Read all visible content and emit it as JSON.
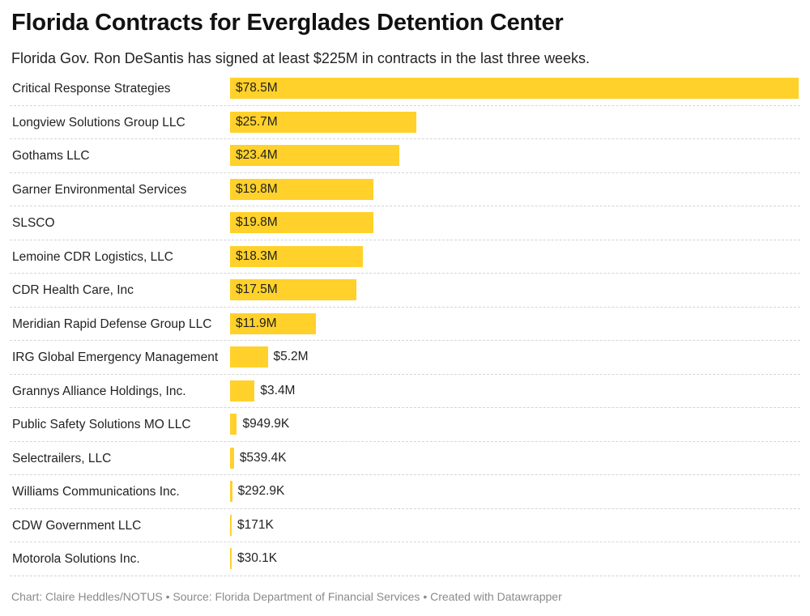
{
  "header": {
    "title": "Florida Contracts for Everglades Detention Center",
    "subtitle": "Florida Gov. Ron DeSantis has signed at least $225M in contracts in the last three weeks."
  },
  "footer": {
    "credit": "Chart: Claire Heddles/NOTUS • Source: Florida Department of Financial Services • Created with Datawrapper"
  },
  "colors": {
    "bar": "#ffd12a"
  },
  "chart_data": {
    "type": "bar",
    "orientation": "horizontal",
    "title": "Florida Contracts for Everglades Detention Center",
    "xlabel": "",
    "ylabel": "",
    "xlim": [
      0,
      78.5
    ],
    "unit": "$M",
    "categories": [
      "Critical Response Strategies",
      "Longview Solutions Group LLC",
      "Gothams LLC",
      "Garner Environmental Services",
      "SLSCO",
      "Lemoine CDR Logistics, LLC",
      "CDR Health Care, Inc",
      "Meridian Rapid Defense Group LLC",
      "IRG Global Emergency Management",
      "Grannys Alliance Holdings, Inc.",
      "Public Safety Solutions MO LLC",
      "Selectrailers, LLC",
      "Williams Communications Inc.",
      "CDW Government LLC",
      "Motorola Solutions Inc."
    ],
    "values": [
      78.5,
      25.7,
      23.4,
      19.8,
      19.8,
      18.3,
      17.5,
      11.9,
      5.2,
      3.4,
      0.9499,
      0.5394,
      0.2929,
      0.171,
      0.0301
    ],
    "value_labels": [
      "$78.5M",
      "$25.7M",
      "$23.4M",
      "$19.8M",
      "$19.8M",
      "$18.3M",
      "$17.5M",
      "$11.9M",
      "$5.2M",
      "$3.4M",
      "$949.9K",
      "$539.4K",
      "$292.9K",
      "$171K",
      "$30.1K"
    ]
  }
}
